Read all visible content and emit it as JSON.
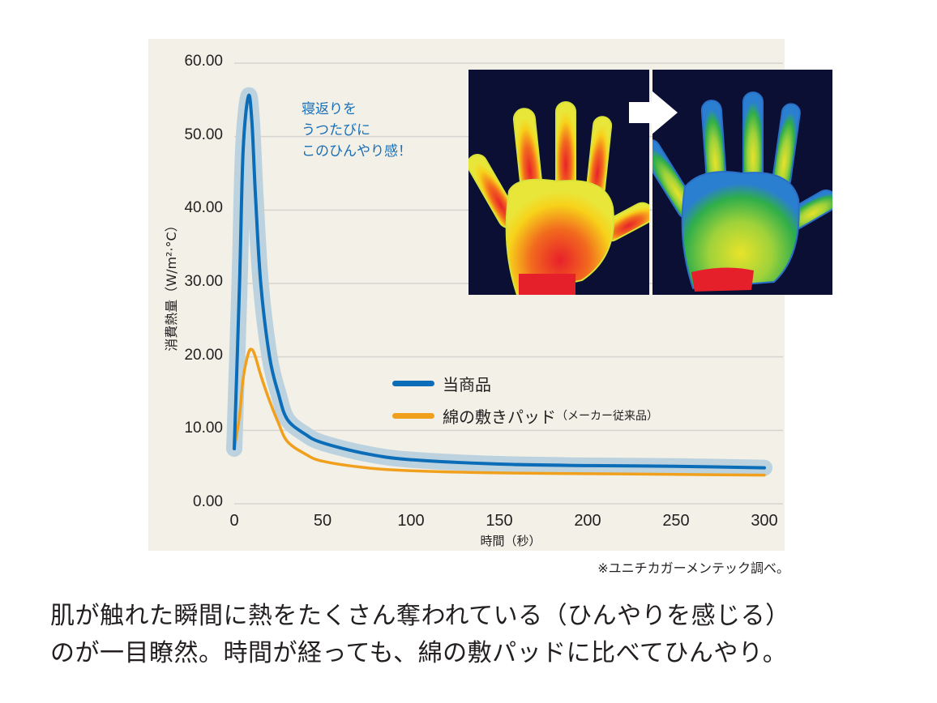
{
  "chart_data": {
    "type": "line",
    "title": "",
    "xlabel": "時間（秒）",
    "ylabel": "消費熱量（W/m²·°C）",
    "xlim": [
      0,
      300
    ],
    "ylim": [
      0,
      60
    ],
    "xticks": [
      "0",
      "50",
      "100",
      "150",
      "200",
      "250",
      "300"
    ],
    "yticks": [
      "0.00",
      "10.00",
      "20.00",
      "30.00",
      "40.00",
      "50.00",
      "60.00"
    ],
    "grid": true,
    "legend_position": "center-right",
    "x": [
      0,
      3,
      5,
      8,
      10,
      12,
      15,
      20,
      25,
      30,
      40,
      50,
      75,
      100,
      150,
      200,
      250,
      300
    ],
    "series": [
      {
        "name": "当商品",
        "color": "#0b6cb8",
        "halo": "#bcd3df",
        "values": [
          7.5,
          30,
          48,
          55.5,
          52,
          42,
          30,
          20,
          15,
          11.5,
          9.5,
          8.3,
          6.8,
          6.0,
          5.4,
          5.2,
          5.1,
          4.9
        ]
      },
      {
        "name": "綿の敷きパッド（メーカー従来品）",
        "color": "#f0a01c",
        "values": [
          7.5,
          12,
          17,
          20.5,
          21,
          20,
          17.5,
          14,
          11,
          8.5,
          6.8,
          5.8,
          4.9,
          4.5,
          4.2,
          4.1,
          4.0,
          3.9
        ]
      }
    ],
    "annotations": [
      "寝返りを",
      "うつたびに",
      "このひんやり感！"
    ]
  },
  "annotation": {
    "line1": "寝返りを",
    "line2": "うつたびに",
    "line3": "このひんやり感！"
  },
  "legend": {
    "item1": "当商品",
    "item2_main": "綿の敷きパッド",
    "item2_sub": "（メーカー従来品）"
  },
  "axes": {
    "ylabel": "消費熱量（W/m²·°C）",
    "xlabel": "時間（秒）"
  },
  "source_note": "※ユニチカガーメンテック調べ。",
  "caption": {
    "line1": "肌が触れた瞬間に熱をたくさん奪われている（ひんやりを感じる）",
    "line2": "のが一目瞭然。時間が経っても、綿の敷パッドに比べてひんやり。"
  },
  "images": {
    "before": "thermal-hand-warm",
    "after": "thermal-hand-cool",
    "arrow": "right-arrow-icon"
  }
}
